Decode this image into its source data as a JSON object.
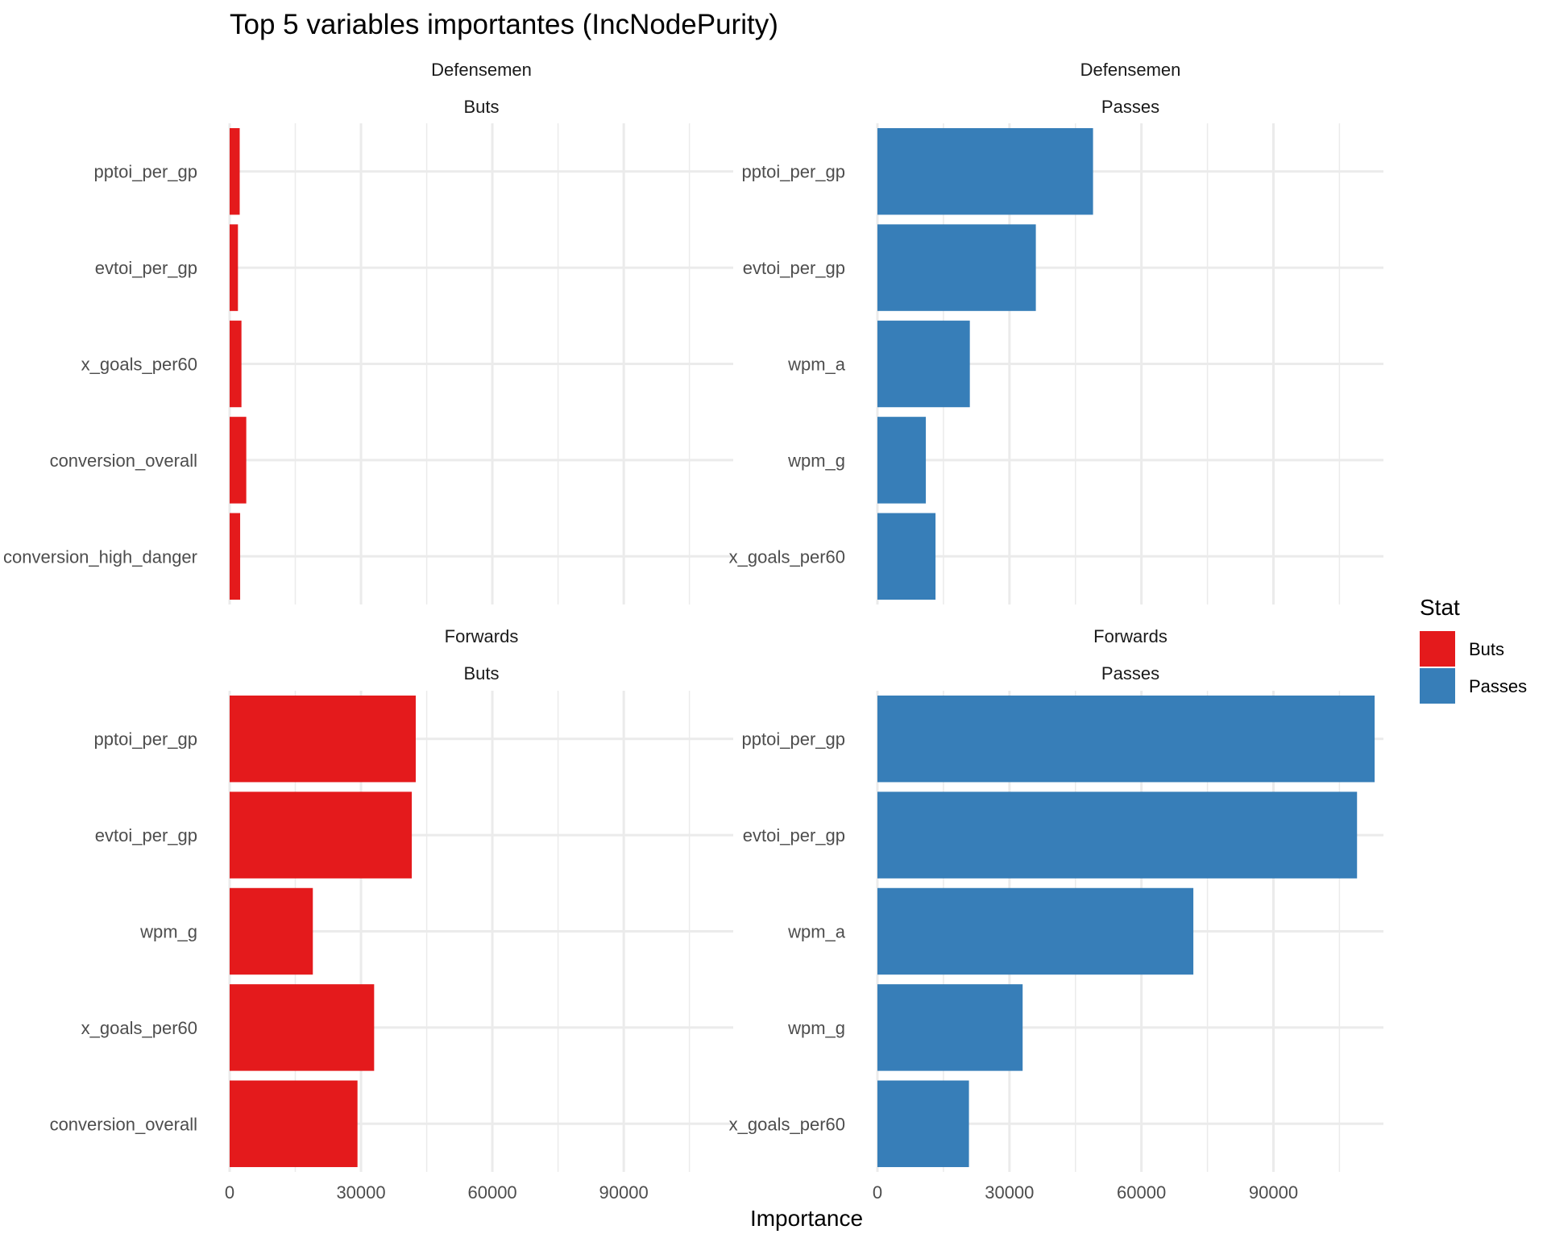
{
  "chart_data": {
    "type": "bar",
    "orientation": "horizontal",
    "title": "Top 5 variables importantes (IncNodePurity)",
    "xlabel": "Importance",
    "ylabel": "",
    "xlim": [
      0,
      115000
    ],
    "x_ticks": [
      "0",
      "30000",
      "60000",
      "90000"
    ],
    "x_tick_values": [
      0,
      30000,
      60000,
      90000
    ],
    "grid": true,
    "legend": {
      "title": "Stat",
      "placement": "right",
      "items": [
        {
          "label": "Buts",
          "color": "#E41A1C"
        },
        {
          "label": "Passes",
          "color": "#377EB8"
        }
      ]
    },
    "panels": [
      {
        "row_label": "Defensemen",
        "col_label": "Buts",
        "stat": "Buts",
        "categories": [
          "pptoi_per_gp",
          "evtoi_per_gp",
          "x_goals_per60",
          "conversion_overall",
          "conversion_high_danger"
        ],
        "values": [
          2300,
          1900,
          2700,
          3800,
          2400
        ]
      },
      {
        "row_label": "Defensemen",
        "col_label": "Passes",
        "stat": "Passes",
        "categories": [
          "pptoi_per_gp",
          "evtoi_per_gp",
          "wpm_a",
          "wpm_g",
          "x_goals_per60"
        ],
        "values": [
          49000,
          36000,
          21000,
          11000,
          13200
        ]
      },
      {
        "row_label": "Forwards",
        "col_label": "Buts",
        "stat": "Buts",
        "categories": [
          "pptoi_per_gp",
          "evtoi_per_gp",
          "wpm_g",
          "x_goals_per60",
          "conversion_overall"
        ],
        "values": [
          42500,
          41600,
          19000,
          33000,
          29200
        ]
      },
      {
        "row_label": "Forwards",
        "col_label": "Passes",
        "stat": "Passes",
        "categories": [
          "pptoi_per_gp",
          "evtoi_per_gp",
          "wpm_a",
          "wpm_g",
          "x_goals_per60"
        ],
        "values": [
          113000,
          109000,
          71800,
          33000,
          20800
        ]
      }
    ]
  }
}
